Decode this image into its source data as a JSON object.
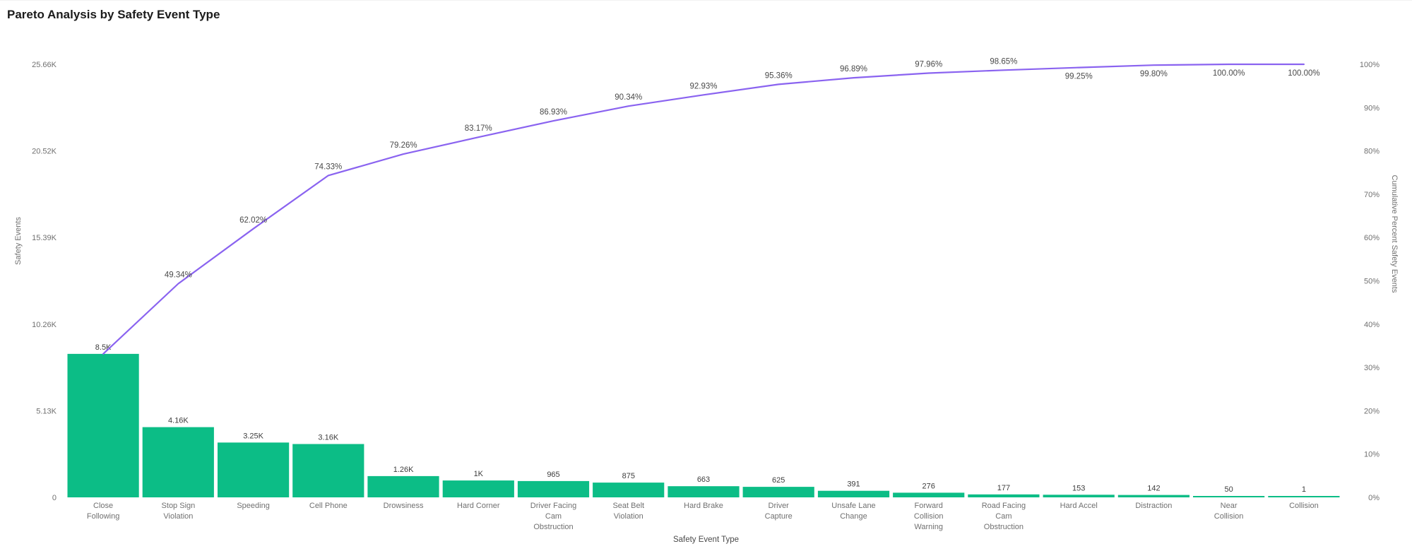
{
  "chart_data": {
    "type": "pareto (bar + cumulative line)",
    "title": "Pareto Analysis by Safety Event Type",
    "background": "#ffffff",
    "grid": false,
    "legend": "none",
    "categories": [
      "Close Following",
      "Stop Sign Violation",
      "Speeding",
      "Cell Phone",
      "Drowsiness",
      "Hard Corner",
      "Driver Facing Cam Obstruction",
      "Seat Belt Violation",
      "Hard Brake",
      "Driver Capture",
      "Unsafe Lane Change",
      "Forward Collision Warning",
      "Road Facing Cam Obstruction",
      "Hard Accel",
      "Distraction",
      "Near Collision",
      "Collision"
    ],
    "category_label_lines": [
      [
        "Close",
        "Following"
      ],
      [
        "Stop Sign",
        "Violation"
      ],
      [
        "Speeding"
      ],
      [
        "Cell Phone"
      ],
      [
        "Drowsiness"
      ],
      [
        "Hard Corner"
      ],
      [
        "Driver Facing",
        "Cam",
        "Obstruction"
      ],
      [
        "Seat Belt",
        "Violation"
      ],
      [
        "Hard Brake"
      ],
      [
        "Driver",
        "Capture"
      ],
      [
        "Unsafe Lane",
        "Change"
      ],
      [
        "Forward",
        "Collision",
        "Warning"
      ],
      [
        "Road Facing",
        "Cam",
        "Obstruction"
      ],
      [
        "Hard Accel"
      ],
      [
        "Distraction"
      ],
      [
        "Near",
        "Collision"
      ],
      [
        "Collision"
      ]
    ],
    "series": [
      {
        "name": "Safety Events",
        "type": "bar",
        "axis": "left",
        "color": "#0cbd86",
        "values": [
          8500,
          4160,
          3250,
          3160,
          1260,
          1000,
          965,
          875,
          663,
          625,
          391,
          276,
          177,
          153,
          142,
          50,
          1
        ],
        "value_labels": [
          "8.5K",
          "4.16K",
          "3.25K",
          "3.16K",
          "1.26K",
          "1K",
          "965",
          "875",
          "663",
          "625",
          "391",
          "276",
          "177",
          "153",
          "142",
          "50",
          "1"
        ]
      },
      {
        "name": "Cumulative Percent Safety Events",
        "type": "line",
        "axis": "right",
        "color": "#8a63f0",
        "values": [
          33.13,
          49.34,
          62.02,
          74.33,
          79.26,
          83.17,
          86.93,
          90.34,
          92.93,
          95.36,
          96.89,
          97.96,
          98.65,
          99.25,
          99.8,
          100,
          100
        ],
        "point_labels": [
          "",
          "49.34%",
          "62.02%",
          "74.33%",
          "79.26%",
          "83.17%",
          "86.93%",
          "90.34%",
          "92.93%",
          "95.36%",
          "96.89%",
          "97.96%",
          "98.65%",
          "99.25%",
          "99.80%",
          "100.00%",
          "100.00%"
        ]
      }
    ],
    "axes": {
      "left": {
        "label": "Safety Events",
        "max": 25660,
        "tick_labels": [
          "0",
          "5.13K",
          "10.26K",
          "15.39K",
          "20.52K",
          "25.66K"
        ]
      },
      "right": {
        "label": "Cumulative Percent Safety Events",
        "max": 100,
        "tick_labels": [
          "0%",
          "10%",
          "20%",
          "30%",
          "40%",
          "50%",
          "60%",
          "70%",
          "80%",
          "90%",
          "100%"
        ]
      },
      "x": {
        "label": "Safety Event Type"
      }
    }
  }
}
